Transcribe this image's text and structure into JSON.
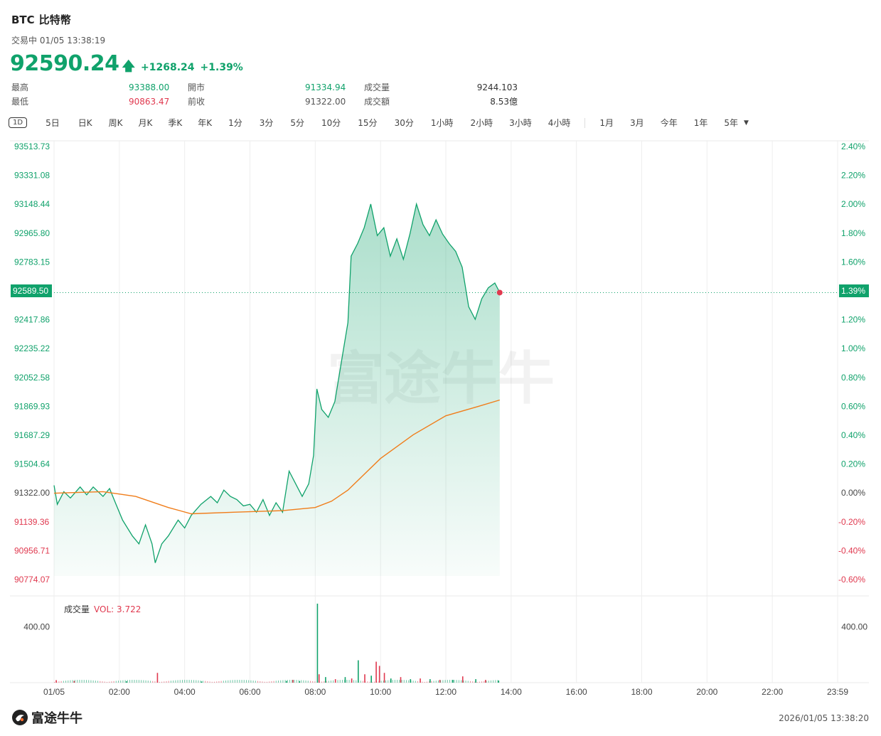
{
  "header": {
    "symbol": "BTC",
    "name": "比特幣",
    "status": "交易中 01/05 13:38:19",
    "price": "92590.24",
    "change": "+1268.24",
    "change_pct": "+1.39%"
  },
  "stats": {
    "high_label": "最高",
    "high": "93388.00",
    "low_label": "最低",
    "low": "90863.47",
    "open_label": "開市",
    "open": "91334.94",
    "prev_label": "前收",
    "prev": "91322.00",
    "vol_label": "成交量",
    "vol": "9244.103",
    "turnover_label": "成交額",
    "turnover": "8.53億"
  },
  "tabs": [
    "1D",
    "5日",
    "日K",
    "周K",
    "月K",
    "季K",
    "年K",
    "1分",
    "3分",
    "5分",
    "10分",
    "15分",
    "30分",
    "1小時",
    "2小時",
    "3小時",
    "4小時",
    "1月",
    "3月",
    "今年",
    "1年",
    "5年"
  ],
  "volume_panel": {
    "label": "成交量",
    "vol_text": "VOL: 3.722"
  },
  "footer": {
    "brand": "富途牛牛",
    "timestamp": "2026/01/05 13:38:20"
  },
  "watermark": "富途牛牛",
  "colors": {
    "up": "#10a26b",
    "down": "#e0394f",
    "avg": "#f07d1a"
  },
  "chart_data": {
    "type": "line",
    "prev_close": 91322.0,
    "current": {
      "price_tag": "92589.50",
      "pct_tag": "1.39%"
    },
    "y_ticks_price": [
      "93513.73",
      "93331.08",
      "93148.44",
      "92965.80",
      "92783.15",
      "92589.50",
      "92417.86",
      "92235.22",
      "92052.58",
      "91869.93",
      "91687.29",
      "91504.64",
      "91322.00",
      "91139.36",
      "90956.71",
      "90774.07"
    ],
    "y_ticks_pct": [
      "2.40%",
      "2.20%",
      "2.00%",
      "1.80%",
      "1.60%",
      "1.39%",
      "1.20%",
      "1.00%",
      "0.80%",
      "0.60%",
      "0.40%",
      "0.20%",
      "0.00%",
      "-0.20%",
      "-0.40%",
      "-0.60%"
    ],
    "x_ticks": [
      "01/05",
      "02:00",
      "04:00",
      "06:00",
      "08:00",
      "10:00",
      "12:00",
      "14:00",
      "16:00",
      "18:00",
      "20:00",
      "22:00",
      "23:59"
    ],
    "y_range": [
      90774.07,
      93513.73
    ],
    "price_series": [
      [
        0.0,
        91370
      ],
      [
        0.1,
        91250
      ],
      [
        0.3,
        91330
      ],
      [
        0.5,
        91290
      ],
      [
        0.8,
        91360
      ],
      [
        1.0,
        91310
      ],
      [
        1.2,
        91360
      ],
      [
        1.5,
        91300
      ],
      [
        1.7,
        91350
      ],
      [
        1.9,
        91250
      ],
      [
        2.1,
        91150
      ],
      [
        2.4,
        91050
      ],
      [
        2.6,
        91000
      ],
      [
        2.8,
        91120
      ],
      [
        3.0,
        91000
      ],
      [
        3.1,
        90880
      ],
      [
        3.3,
        91000
      ],
      [
        3.5,
        91050
      ],
      [
        3.8,
        91150
      ],
      [
        4.0,
        91100
      ],
      [
        4.2,
        91180
      ],
      [
        4.5,
        91250
      ],
      [
        4.8,
        91300
      ],
      [
        5.0,
        91260
      ],
      [
        5.2,
        91340
      ],
      [
        5.4,
        91300
      ],
      [
        5.6,
        91280
      ],
      [
        5.8,
        91240
      ],
      [
        6.0,
        91250
      ],
      [
        6.2,
        91200
      ],
      [
        6.4,
        91280
      ],
      [
        6.6,
        91180
      ],
      [
        6.8,
        91260
      ],
      [
        7.0,
        91200
      ],
      [
        7.2,
        91460
      ],
      [
        7.4,
        91380
      ],
      [
        7.6,
        91300
      ],
      [
        7.8,
        91380
      ],
      [
        7.95,
        91560
      ],
      [
        8.05,
        91980
      ],
      [
        8.2,
        91850
      ],
      [
        8.4,
        91800
      ],
      [
        8.6,
        91900
      ],
      [
        8.8,
        92150
      ],
      [
        9.0,
        92400
      ],
      [
        9.1,
        92820
      ],
      [
        9.3,
        92900
      ],
      [
        9.5,
        93000
      ],
      [
        9.7,
        93150
      ],
      [
        9.9,
        92950
      ],
      [
        10.1,
        93000
      ],
      [
        10.3,
        92820
      ],
      [
        10.5,
        92930
      ],
      [
        10.7,
        92800
      ],
      [
        10.9,
        92960
      ],
      [
        11.1,
        93150
      ],
      [
        11.3,
        93020
      ],
      [
        11.5,
        92950
      ],
      [
        11.7,
        93050
      ],
      [
        11.9,
        92960
      ],
      [
        12.1,
        92900
      ],
      [
        12.3,
        92850
      ],
      [
        12.5,
        92750
      ],
      [
        12.7,
        92500
      ],
      [
        12.9,
        92420
      ],
      [
        13.1,
        92550
      ],
      [
        13.3,
        92620
      ],
      [
        13.5,
        92650
      ],
      [
        13.65,
        92590
      ]
    ],
    "avg_series": [
      [
        0.0,
        91320
      ],
      [
        1.5,
        91330
      ],
      [
        2.5,
        91300
      ],
      [
        3.5,
        91230
      ],
      [
        4.2,
        91190
      ],
      [
        5.5,
        91200
      ],
      [
        7.0,
        91210
      ],
      [
        8.0,
        91230
      ],
      [
        8.5,
        91270
      ],
      [
        9.0,
        91340
      ],
      [
        9.5,
        91440
      ],
      [
        10.0,
        91540
      ],
      [
        11.0,
        91690
      ],
      [
        12.0,
        91810
      ],
      [
        13.0,
        91870
      ],
      [
        13.65,
        91910
      ]
    ],
    "volume": {
      "ylim": [
        0,
        600
      ],
      "tick": "400.00"
    },
    "volume_bars": [
      [
        0.05,
        18,
        "down"
      ],
      [
        0.6,
        12,
        "down"
      ],
      [
        2.2,
        10,
        "up"
      ],
      [
        3.15,
        70,
        "down"
      ],
      [
        4.5,
        8,
        "up"
      ],
      [
        7.1,
        12,
        "up"
      ],
      [
        7.3,
        20,
        "down"
      ],
      [
        7.5,
        10,
        "up"
      ],
      [
        8.05,
        565,
        "up"
      ],
      [
        8.1,
        60,
        "down"
      ],
      [
        8.3,
        40,
        "up"
      ],
      [
        8.6,
        25,
        "down"
      ],
      [
        8.9,
        40,
        "up"
      ],
      [
        9.1,
        30,
        "down"
      ],
      [
        9.3,
        160,
        "up"
      ],
      [
        9.5,
        60,
        "down"
      ],
      [
        9.7,
        50,
        "up"
      ],
      [
        9.85,
        150,
        "down"
      ],
      [
        9.95,
        120,
        "down"
      ],
      [
        10.1,
        70,
        "down"
      ],
      [
        10.3,
        30,
        "up"
      ],
      [
        10.6,
        40,
        "down"
      ],
      [
        10.9,
        25,
        "up"
      ],
      [
        11.2,
        30,
        "down"
      ],
      [
        11.5,
        25,
        "up"
      ],
      [
        11.8,
        20,
        "down"
      ],
      [
        12.2,
        20,
        "up"
      ],
      [
        12.5,
        45,
        "down"
      ],
      [
        12.9,
        25,
        "up"
      ],
      [
        13.2,
        20,
        "down"
      ],
      [
        13.6,
        15,
        "up"
      ]
    ]
  }
}
